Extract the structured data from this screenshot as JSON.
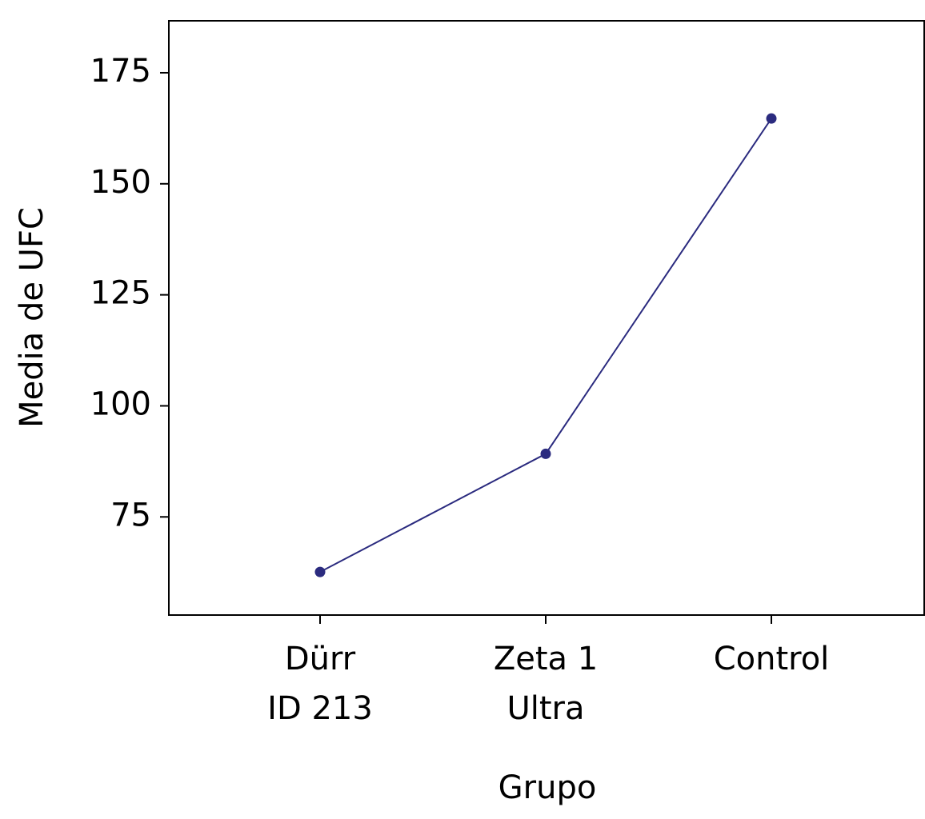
{
  "chart_data": {
    "type": "line",
    "xlabel": "Grupo",
    "ylabel": "Media de UFC",
    "categories": [
      "Dürr\nID 213",
      "Zeta 1\nUltra",
      "Control"
    ],
    "values": [
      62.6,
      89.2,
      164.7
    ],
    "color": "#2b2b7f",
    "ylim": [
      52.9,
      186.7
    ],
    "yticks": [
      75,
      100,
      125,
      150,
      175
    ],
    "grid": false
  }
}
